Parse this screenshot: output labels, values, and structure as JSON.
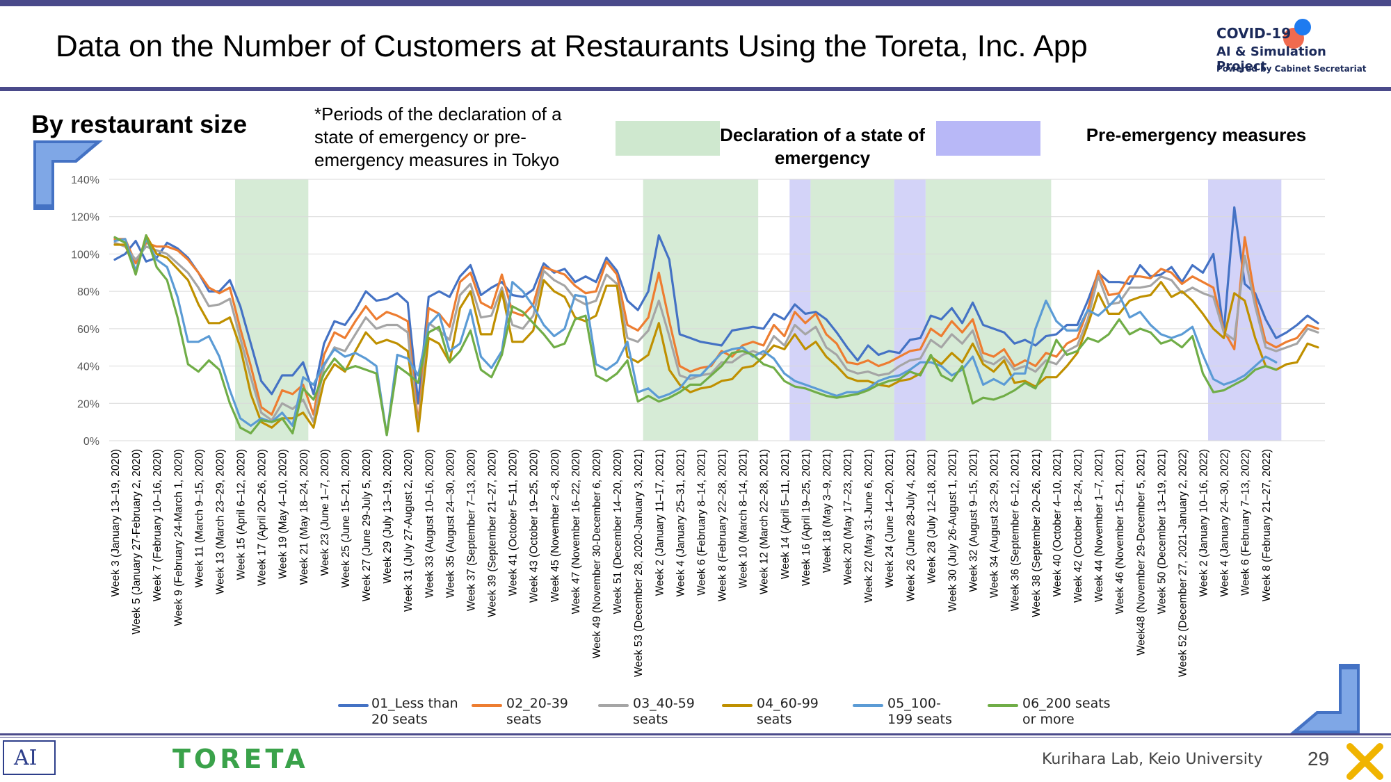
{
  "header": {
    "title": "Data on the Number of Customers at Restaurants Using the Toreta, Inc. App",
    "logo_line1": "COVID-19",
    "logo_line2": "AI & Simulation Project",
    "logo_line3": "Powered by Cabinet Secretariat"
  },
  "section": {
    "title": "By restaurant size",
    "note": "*Periods of the declaration of a state of emergency or pre-emergency measures in Tokyo"
  },
  "period_key": {
    "emergency_label": "Declaration of a state of emergency",
    "emergency_color": "#cfe8cf",
    "preemergency_label": "Pre-emergency measures",
    "preemergency_color": "#c4c4f5"
  },
  "footer": {
    "brand": "TORETA",
    "lab": "Kurihara Lab, Keio University",
    "page": "29"
  },
  "chart_data": {
    "type": "line",
    "ylim": [
      0,
      140
    ],
    "y_ticks": [
      "0%",
      "20%",
      "40%",
      "60%",
      "80%",
      "100%",
      "120%",
      "140%"
    ],
    "x_tick_labels": [
      "Week 3 (January 13–19, 2020)",
      "Week 5 (January 27-February 2, 2020)",
      "Week 7 (February 10–16, 2020)",
      "Week 9 (February 24-March 1, 2020)",
      "Week 11 (March 9–15, 2020)",
      "Week 13 (March 23–29, 2020)",
      "Week 15 (April 6–12, 2020)",
      "Week 17 (April 20–26, 2020)",
      "Week 19 (May 4–10, 2020)",
      "Week 21 (May 18–24, 2020)",
      "Week 23 (June 1–7, 2020)",
      "Week 25 (June 15–21, 2020)",
      "Week 27 (June 29-July 5, 2020)",
      "Week 29 (July 13–19, 2020)",
      "Week 31 (July 27-August 2, 2020)",
      "Week 33 (August 10–16, 2020)",
      "Week 35 (August 24–30, 2020)",
      "Week 37 (September 7–13, 2020)",
      "Week 39 (September 21–27, 2020)",
      "Week 41 (October 5–11, 2020)",
      "Week 43 (October 19–25, 2020)",
      "Week 45 (November 2–8, 2020)",
      "Week 47 (November 16–22, 2020)",
      "Week 49 (November 30-December 6, 2020)",
      "Week 51 (December 14–20, 2020)",
      "Week 53 (December 28, 2020-January 3, 2021)",
      "Week 2 (January 11–17, 2021)",
      "Week 4 (January 25–31, 2021)",
      "Week 6 (February 8–14, 2021)",
      "Week 8 (February 22–28, 2021)",
      "Week 10 (March 8–14, 2021)",
      "Week 12 (March 22–28, 2021)",
      "Week 14 (April 5–11, 2021)",
      "Week 16 (April 19–25, 2021)",
      "Week 18 (May 3–9, 2021)",
      "Week 20 (May 17–23, 2021)",
      "Week 22 (May 31-June 6, 2021)",
      "Week 24 (June 14–20, 2021)",
      "Week 26 (June 28-July 4, 2021)",
      "Week 28 (July 12–18, 2021)",
      "Week 30 (July 26-August 1, 2021)",
      "Week 32 (August 9–15, 2021)",
      "Week 34 (August 23–29, 2021)",
      "Week 36 (September 6–12, 2021)",
      "Week 38 (September 20–26, 2021)",
      "Week 40 (October 4–10, 2021)",
      "Week 42 (October 18–24, 2021)",
      "Week 44 (November 1–7, 2021)",
      "Week 46 (November 15–21, 2021)",
      "Week48 (November 29-December 5, 2021)",
      "Week 50 (December 13–19, 2021)",
      "Week 52 (December 27, 2021-January 2, 2022)",
      "Week 2 (January 10–16, 2022)",
      "Week 4 (January 24–30, 2022)",
      "Week 6 (February 7–13, 2022)",
      "Week 8 (February 21–27, 2022)"
    ],
    "shaded_periods": [
      {
        "kind": "emergency",
        "from_week_index": 12,
        "to_week_index": 19
      },
      {
        "kind": "emergency",
        "from_week_index": 51,
        "to_week_index": 62
      },
      {
        "kind": "preemergency",
        "from_week_index": 65,
        "to_week_index": 67
      },
      {
        "kind": "emergency",
        "from_week_index": 67,
        "to_week_index": 75
      },
      {
        "kind": "preemergency",
        "from_week_index": 75,
        "to_week_index": 78
      },
      {
        "kind": "emergency",
        "from_week_index": 78,
        "to_week_index": 90
      },
      {
        "kind": "preemergency",
        "from_week_index": 105,
        "to_week_index": 112
      }
    ],
    "series": [
      {
        "name": "01_Less than 20 seats",
        "color": "#4472c4",
        "values": [
          97,
          100,
          107,
          96,
          98,
          106,
          103,
          98,
          90,
          80,
          80,
          86,
          72,
          52,
          32,
          25,
          35,
          35,
          42,
          25,
          52,
          64,
          62,
          70,
          80,
          75,
          76,
          79,
          74,
          20,
          77,
          80,
          77,
          88,
          94,
          78,
          82,
          85,
          78,
          77,
          81,
          95,
          90,
          92,
          85,
          88,
          85,
          98,
          91,
          75,
          70,
          80,
          110,
          97,
          57,
          55,
          53,
          52,
          51,
          59,
          60,
          61,
          60,
          68,
          65,
          73,
          68,
          69,
          65,
          58,
          50,
          43,
          51,
          46,
          48,
          47,
          54,
          55,
          67,
          65,
          71,
          63,
          74,
          62,
          60,
          58,
          52,
          54,
          51,
          56,
          57,
          62,
          62,
          75,
          90,
          85,
          85,
          84,
          94,
          88,
          89,
          93,
          85,
          94,
          90,
          100,
          58,
          125,
          84,
          79,
          65,
          55,
          58,
          62,
          67,
          63
        ]
      },
      {
        "name": "02_20-39 seats",
        "color": "#ed7d31",
        "values": [
          108,
          108,
          95,
          106,
          104,
          104,
          102,
          97,
          90,
          82,
          79,
          82,
          60,
          40,
          18,
          14,
          27,
          25,
          30,
          14,
          46,
          58,
          55,
          64,
          72,
          65,
          69,
          67,
          64,
          9,
          71,
          68,
          61,
          85,
          90,
          74,
          71,
          89,
          69,
          67,
          73,
          93,
          91,
          89,
          83,
          79,
          80,
          96,
          89,
          62,
          59,
          66,
          90,
          64,
          40,
          37,
          39,
          40,
          48,
          45,
          51,
          53,
          51,
          62,
          56,
          69,
          63,
          68,
          57,
          52,
          42,
          41,
          43,
          40,
          42,
          45,
          48,
          49,
          60,
          56,
          64,
          58,
          65,
          47,
          45,
          49,
          40,
          43,
          40,
          47,
          45,
          52,
          55,
          70,
          91,
          78,
          79,
          88,
          88,
          87,
          92,
          90,
          84,
          88,
          85,
          82,
          59,
          49,
          109,
          76,
          53,
          50,
          53,
          55,
          62,
          60
        ]
      },
      {
        "name": "03_40-59 seats",
        "color": "#a5a5a5",
        "values": [
          106,
          104,
          97,
          104,
          102,
          100,
          95,
          90,
          82,
          72,
          73,
          76,
          55,
          34,
          15,
          11,
          20,
          17,
          22,
          10,
          40,
          50,
          48,
          57,
          66,
          60,
          62,
          62,
          58,
          6,
          63,
          59,
          54,
          78,
          84,
          66,
          67,
          82,
          62,
          60,
          67,
          91,
          86,
          83,
          76,
          73,
          75,
          89,
          84,
          55,
          53,
          59,
          75,
          56,
          35,
          33,
          35,
          36,
          42,
          42,
          46,
          48,
          46,
          56,
          51,
          62,
          57,
          61,
          50,
          46,
          38,
          36,
          37,
          35,
          36,
          40,
          43,
          44,
          54,
          50,
          57,
          52,
          59,
          43,
          41,
          45,
          38,
          40,
          37,
          43,
          41,
          48,
          51,
          65,
          88,
          73,
          74,
          82,
          82,
          83,
          88,
          86,
          79,
          82,
          79,
          77,
          58,
          54,
          99,
          72,
          50,
          48,
          50,
          52,
          60,
          58
        ]
      },
      {
        "name": "04_60-99 seats",
        "color": "#bf9000",
        "values": [
          105,
          105,
          90,
          110,
          100,
          98,
          92,
          86,
          73,
          63,
          63,
          66,
          50,
          25,
          10,
          7,
          12,
          12,
          15,
          7,
          32,
          41,
          37,
          48,
          58,
          52,
          54,
          52,
          48,
          5,
          55,
          52,
          42,
          71,
          80,
          57,
          57,
          80,
          53,
          53,
          59,
          86,
          80,
          77,
          66,
          64,
          67,
          83,
          83,
          45,
          42,
          46,
          63,
          38,
          30,
          26,
          28,
          29,
          32,
          33,
          39,
          40,
          45,
          51,
          49,
          57,
          49,
          53,
          45,
          40,
          34,
          32,
          32,
          30,
          29,
          32,
          33,
          36,
          45,
          41,
          47,
          42,
          52,
          41,
          37,
          43,
          31,
          32,
          29,
          34,
          34,
          40,
          47,
          62,
          79,
          68,
          68,
          75,
          77,
          78,
          85,
          77,
          80,
          75,
          68,
          60,
          55,
          79,
          75,
          55,
          40,
          38,
          41,
          42,
          52,
          50
        ]
      },
      {
        "name": "05_100-199 seats",
        "color": "#5b9bd5",
        "values": [
          107,
          108,
          91,
          108,
          97,
          93,
          77,
          53,
          53,
          56,
          45,
          27,
          12,
          8,
          12,
          10,
          15,
          8,
          34,
          30,
          41,
          49,
          45,
          47,
          44,
          40,
          3,
          46,
          44,
          35,
          62,
          68,
          48,
          52,
          70,
          45,
          39,
          48,
          85,
          80,
          72,
          62,
          56,
          60,
          78,
          77,
          41,
          38,
          42,
          53,
          26,
          28,
          23,
          25,
          28,
          35,
          35,
          41,
          47,
          49,
          50,
          45,
          48,
          44,
          36,
          32,
          30,
          28,
          26,
          24,
          26,
          26,
          28,
          32,
          34,
          35,
          38,
          42,
          42,
          40,
          35,
          38,
          45,
          30,
          33,
          30,
          36,
          36,
          60,
          75,
          64,
          59,
          59,
          70,
          67,
          72,
          78,
          66,
          69,
          62,
          57,
          55,
          57,
          61,
          46,
          33,
          30,
          32,
          35,
          40,
          45,
          42
        ]
      },
      {
        "name": "06_200 seats or more",
        "color": "#70ad47",
        "values": [
          109,
          106,
          89,
          110,
          93,
          86,
          66,
          41,
          37,
          43,
          38,
          20,
          7,
          4,
          11,
          10,
          12,
          4,
          28,
          22,
          36,
          44,
          38,
          40,
          38,
          36,
          3,
          40,
          36,
          31,
          58,
          61,
          42,
          48,
          59,
          38,
          34,
          46,
          72,
          69,
          63,
          57,
          50,
          52,
          65,
          67,
          35,
          32,
          36,
          43,
          21,
          24,
          21,
          23,
          26,
          30,
          30,
          35,
          40,
          47,
          48,
          46,
          41,
          39,
          32,
          29,
          28,
          26,
          24,
          23,
          24,
          25,
          27,
          30,
          32,
          33,
          37,
          35,
          46,
          35,
          32,
          40,
          20,
          23,
          22,
          24,
          27,
          31,
          28,
          40,
          54,
          46,
          48,
          55,
          53,
          57,
          65,
          57,
          60,
          58,
          52,
          54,
          50,
          56,
          36,
          26,
          27,
          30,
          33,
          38,
          40,
          38
        ]
      }
    ]
  }
}
